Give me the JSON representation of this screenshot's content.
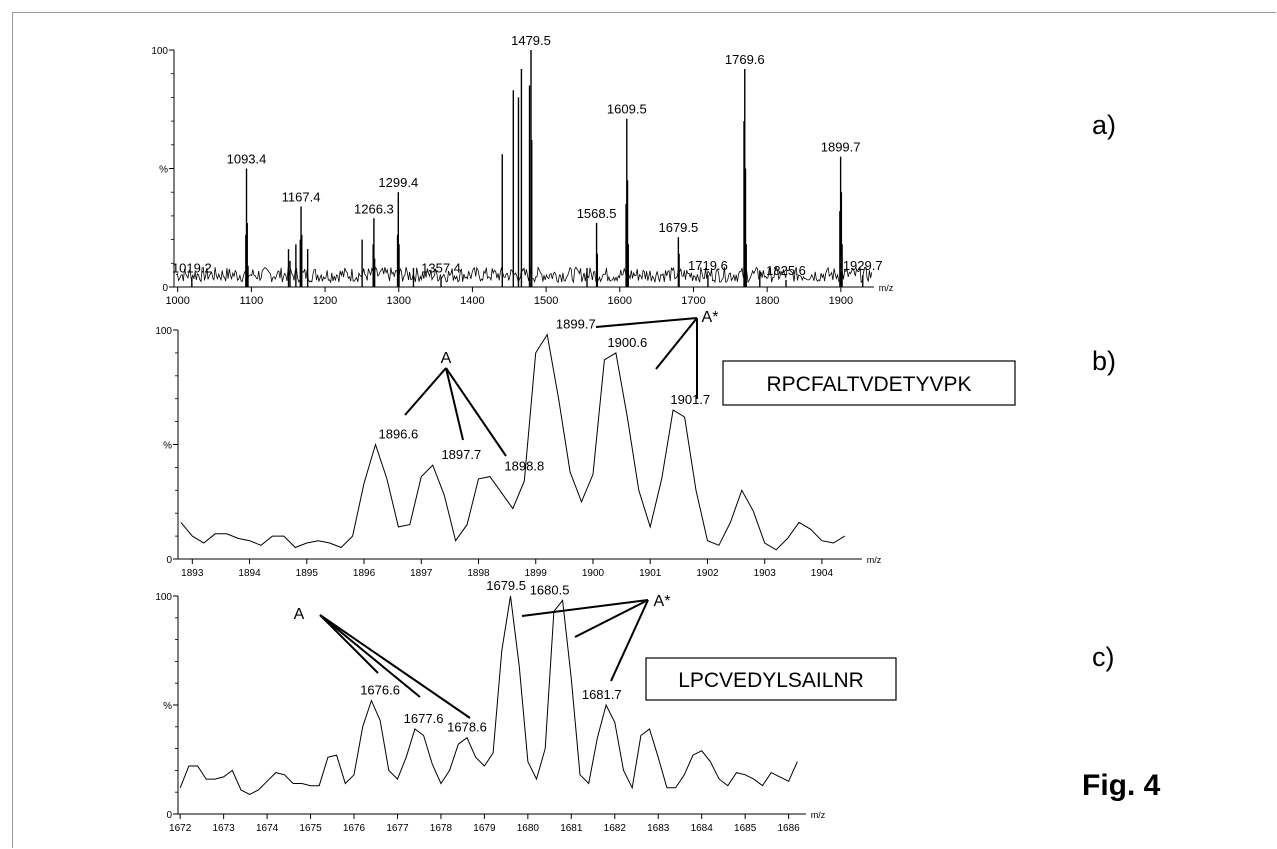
{
  "figure": {
    "fig_label": "Fig. 4"
  },
  "chart_data": [
    {
      "panel": "a)",
      "type": "line",
      "xlabel": "m/z",
      "ylabel": "%",
      "xlim": [
        995,
        1945
      ],
      "ylim": [
        0,
        100
      ],
      "xticks": [
        1000,
        1100,
        1200,
        1300,
        1400,
        1500,
        1600,
        1700,
        1800,
        1900
      ],
      "yticks": [
        {
          "v": 0,
          "label": "0"
        },
        {
          "v": 50,
          "label": "%"
        },
        {
          "v": 100,
          "label": "100"
        }
      ],
      "baseline": 4,
      "peaks": [
        {
          "x": 1019.2,
          "y": 4,
          "label": "1019.2"
        },
        {
          "x": 1092.5,
          "y": 22
        },
        {
          "x": 1093.4,
          "y": 50,
          "label": "1093.4"
        },
        {
          "x": 1094.4,
          "y": 27
        },
        {
          "x": 1095.4,
          "y": 9
        },
        {
          "x": 1150.4,
          "y": 16
        },
        {
          "x": 1152.4,
          "y": 11
        },
        {
          "x": 1160.4,
          "y": 18
        },
        {
          "x": 1166.4,
          "y": 20
        },
        {
          "x": 1167.4,
          "y": 34,
          "label": "1167.4"
        },
        {
          "x": 1168.4,
          "y": 22
        },
        {
          "x": 1176.4,
          "y": 16
        },
        {
          "x": 1250.3,
          "y": 20
        },
        {
          "x": 1265.3,
          "y": 18
        },
        {
          "x": 1266.3,
          "y": 29,
          "label": "1266.3"
        },
        {
          "x": 1267.3,
          "y": 12
        },
        {
          "x": 1298.4,
          "y": 22
        },
        {
          "x": 1299.4,
          "y": 40,
          "label": "1299.4"
        },
        {
          "x": 1300.4,
          "y": 18
        },
        {
          "x": 1320.0,
          "y": 8
        },
        {
          "x": 1357.4,
          "y": 4,
          "label": "1357.4"
        },
        {
          "x": 1440.5,
          "y": 56
        },
        {
          "x": 1455.5,
          "y": 83
        },
        {
          "x": 1462.5,
          "y": 80
        },
        {
          "x": 1466.5,
          "y": 92
        },
        {
          "x": 1477.5,
          "y": 85
        },
        {
          "x": 1479.5,
          "y": 100,
          "label": "1479.5"
        },
        {
          "x": 1480.5,
          "y": 62
        },
        {
          "x": 1555.5,
          "y": 8
        },
        {
          "x": 1568.5,
          "y": 27,
          "label": "1568.5"
        },
        {
          "x": 1569.5,
          "y": 14
        },
        {
          "x": 1608.5,
          "y": 35
        },
        {
          "x": 1609.5,
          "y": 71,
          "label": "1609.5"
        },
        {
          "x": 1610.5,
          "y": 45
        },
        {
          "x": 1611.5,
          "y": 18
        },
        {
          "x": 1679.5,
          "y": 21,
          "label": "1679.5"
        },
        {
          "x": 1680.5,
          "y": 14
        },
        {
          "x": 1719.6,
          "y": 5,
          "label": "1719.6"
        },
        {
          "x": 1768.6,
          "y": 70
        },
        {
          "x": 1769.6,
          "y": 92,
          "label": "1769.6"
        },
        {
          "x": 1770.6,
          "y": 50
        },
        {
          "x": 1771.6,
          "y": 18
        },
        {
          "x": 1790.0,
          "y": 7
        },
        {
          "x": 1825.6,
          "y": 3,
          "label": "1825.6"
        },
        {
          "x": 1898.7,
          "y": 32
        },
        {
          "x": 1899.7,
          "y": 55,
          "label": "1899.7"
        },
        {
          "x": 1900.7,
          "y": 40
        },
        {
          "x": 1901.7,
          "y": 18
        },
        {
          "x": 1929.7,
          "y": 5,
          "label": "1929.7"
        }
      ]
    },
    {
      "panel": "b)",
      "type": "line",
      "xlabel": "m/z",
      "ylabel": "%",
      "xlim": [
        1892.75,
        1904.7
      ],
      "ylim": [
        0,
        100
      ],
      "xticks": [
        1893,
        1894,
        1895,
        1896,
        1897,
        1898,
        1899,
        1900,
        1901,
        1902,
        1903,
        1904
      ],
      "yticks": [
        {
          "v": 0,
          "label": "0"
        },
        {
          "v": 50,
          "label": "%"
        },
        {
          "v": 100,
          "label": "100"
        }
      ],
      "x": [
        1892.8,
        1893.0,
        1893.2,
        1893.4,
        1893.6,
        1893.8,
        1894.0,
        1894.2,
        1894.4,
        1894.6,
        1894.8,
        1895.0,
        1895.2,
        1895.4,
        1895.6,
        1895.8,
        1896.0,
        1896.2,
        1896.4,
        1896.6,
        1896.8,
        1897.0,
        1897.2,
        1897.4,
        1897.6,
        1897.8,
        1898.0,
        1898.2,
        1898.4,
        1898.6,
        1898.8,
        1899.0,
        1899.2,
        1899.4,
        1899.6,
        1899.8,
        1900.0,
        1900.2,
        1900.4,
        1900.6,
        1900.8,
        1901.0,
        1901.2,
        1901.4,
        1901.6,
        1901.8,
        1902.0,
        1902.2,
        1902.4,
        1902.6,
        1902.8,
        1903.0,
        1903.2,
        1903.4,
        1903.6,
        1903.8,
        1904.0,
        1904.2,
        1904.4
      ],
      "y": [
        16,
        10,
        7,
        11,
        11,
        9,
        8,
        6,
        10,
        10,
        5,
        7,
        8,
        7,
        5,
        10,
        33,
        50,
        35,
        14,
        15,
        36,
        41,
        28,
        8,
        15,
        35,
        36,
        29,
        22,
        34,
        90,
        98,
        70,
        38,
        25,
        37,
        87,
        90,
        62,
        30,
        14,
        35,
        65,
        62,
        30,
        8,
        6,
        16,
        30,
        21,
        7,
        4,
        9,
        16,
        13,
        8,
        7,
        10
      ],
      "annotations": [
        {
          "x": 1896.6,
          "y": 50,
          "label": "1896.6"
        },
        {
          "x": 1897.7,
          "y": 41,
          "label": "1897.7"
        },
        {
          "x": 1898.8,
          "y": 36,
          "label": "1898.8"
        },
        {
          "x": 1899.7,
          "y": 98,
          "label": "1899.7"
        },
        {
          "x": 1900.6,
          "y": 90,
          "label": "1900.6"
        },
        {
          "x": 1901.7,
          "y": 65,
          "label": "1901.7"
        }
      ],
      "groups": [
        {
          "label": "A",
          "kind": "normal"
        },
        {
          "label": "A*",
          "kind": "star"
        }
      ],
      "sequence": "RPCFALTVDETYVPK"
    },
    {
      "panel": "c)",
      "type": "line",
      "xlabel": "m/z",
      "ylabel": "%",
      "xlim": [
        1671.95,
        1686.4
      ],
      "ylim": [
        0,
        100
      ],
      "xticks": [
        1672,
        1673,
        1674,
        1675,
        1676,
        1677,
        1678,
        1679,
        1680,
        1681,
        1682,
        1683,
        1684,
        1685,
        1686
      ],
      "yticks": [
        {
          "v": 0,
          "label": "0"
        },
        {
          "v": 50,
          "label": "%"
        },
        {
          "v": 100,
          "label": "100"
        }
      ],
      "x": [
        1672.0,
        1672.2,
        1672.4,
        1672.6,
        1672.8,
        1673.0,
        1673.2,
        1673.4,
        1673.6,
        1673.8,
        1674.0,
        1674.2,
        1674.4,
        1674.6,
        1674.8,
        1675.0,
        1675.2,
        1675.4,
        1675.6,
        1675.8,
        1676.0,
        1676.2,
        1676.4,
        1676.6,
        1676.8,
        1677.0,
        1677.2,
        1677.4,
        1677.6,
        1677.8,
        1678.0,
        1678.2,
        1678.4,
        1678.6,
        1678.8,
        1679.0,
        1679.2,
        1679.4,
        1679.6,
        1679.8,
        1680.0,
        1680.2,
        1680.4,
        1680.6,
        1680.8,
        1681.0,
        1681.2,
        1681.4,
        1681.6,
        1681.8,
        1682.0,
        1682.2,
        1682.4,
        1682.6,
        1682.8,
        1683.0,
        1683.2,
        1683.4,
        1683.6,
        1683.8,
        1684.0,
        1684.2,
        1684.4,
        1684.6,
        1684.8,
        1685.0,
        1685.2,
        1685.4,
        1685.6,
        1685.8,
        1686.0,
        1686.2
      ],
      "y": [
        12,
        22,
        22,
        16,
        16,
        17,
        20,
        11,
        9,
        11,
        15,
        19,
        18,
        14,
        14,
        13,
        13,
        26,
        27,
        14,
        18,
        40,
        52,
        43,
        20,
        16,
        26,
        39,
        36,
        23,
        14,
        20,
        32,
        35,
        26,
        22,
        28,
        75,
        100,
        68,
        24,
        16,
        30,
        93,
        98,
        62,
        18,
        14,
        35,
        50,
        42,
        20,
        12,
        36,
        39,
        26,
        12,
        12,
        18,
        27,
        29,
        24,
        16,
        13,
        19,
        18,
        16,
        13,
        19,
        17,
        15,
        24
      ],
      "annotations": [
        {
          "x": 1676.6,
          "y": 52,
          "label": "1676.6"
        },
        {
          "x": 1677.6,
          "y": 39,
          "label": "1677.6"
        },
        {
          "x": 1678.6,
          "y": 35,
          "label": "1678.6"
        },
        {
          "x": 1679.5,
          "y": 100,
          "label": "1679.5"
        },
        {
          "x": 1680.5,
          "y": 98,
          "label": "1680.5"
        },
        {
          "x": 1681.7,
          "y": 50,
          "label": "1681.7"
        }
      ],
      "groups": [
        {
          "label": "A",
          "kind": "normal"
        },
        {
          "label": "A*",
          "kind": "star"
        }
      ],
      "sequence": "LPCVEDYLSAILNR"
    }
  ]
}
